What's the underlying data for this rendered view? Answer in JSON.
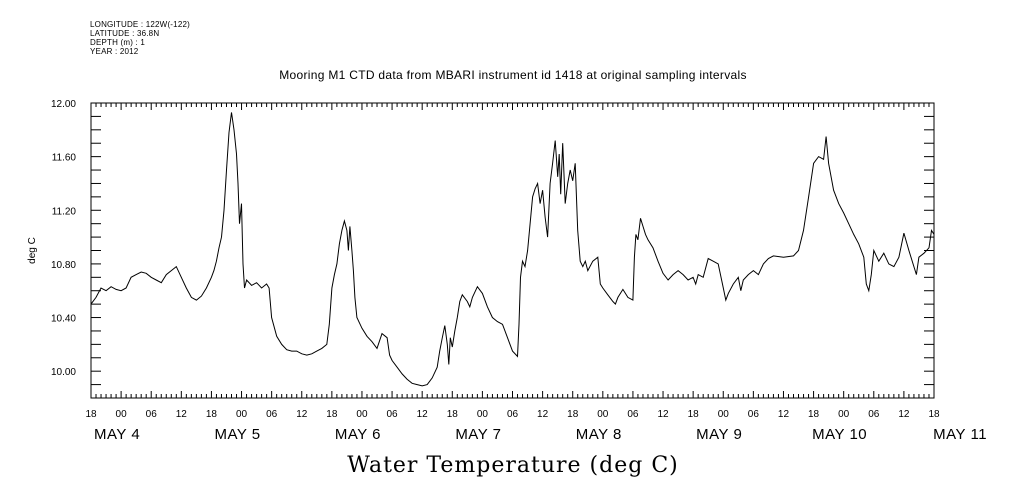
{
  "meta": {
    "longitude": "LONGITUDE : 122W(-122)",
    "latitude": "LATITUDE : 36.8N",
    "depth": "DEPTH (m) : 1",
    "year": "YEAR : 2012"
  },
  "chart_data": {
    "type": "line",
    "title": "Mooring M1 CTD data from MBARI instrument id 1418 at original sampling intervals",
    "footer_title": "Water Temperature (deg C)",
    "ylabel": "deg C",
    "xlabel": "",
    "ylim": [
      9.8,
      12.0
    ],
    "y_ticks": [
      "10.00",
      "10.40",
      "10.80",
      "11.20",
      "11.60",
      "12.00"
    ],
    "y_tick_values": [
      10.0,
      10.4,
      10.8,
      11.2,
      11.6,
      12.0
    ],
    "x_tick_labels": [
      "18",
      "00",
      "06",
      "12",
      "18",
      "00",
      "06",
      "12",
      "18",
      "00",
      "06",
      "12",
      "18",
      "00",
      "06",
      "12",
      "18",
      "00",
      "06",
      "12",
      "18",
      "00",
      "06",
      "12",
      "18",
      "00",
      "06",
      "12",
      "18"
    ],
    "x_tick_hours": [
      18,
      24,
      30,
      36,
      42,
      48,
      54,
      60,
      66,
      72,
      78,
      84,
      90,
      96,
      102,
      108,
      114,
      120,
      126,
      132,
      138,
      144,
      150,
      156,
      162,
      168,
      174,
      180,
      186
    ],
    "xlim_hours": [
      18,
      186
    ],
    "x_axis_note": "hours since 2012-05-04 00:00",
    "day_labels": [
      "MAY  4",
      "MAY  5",
      "MAY  6",
      "MAY  7",
      "MAY  8",
      "MAY  9",
      "MAY 10",
      "MAY 11"
    ],
    "day_label_hours": [
      24,
      48,
      72,
      96,
      120,
      144,
      168,
      192
    ],
    "grid": false,
    "series": [
      {
        "name": "Water Temperature",
        "points": [
          [
            18,
            10.5
          ],
          [
            19,
            10.55
          ],
          [
            20,
            10.62
          ],
          [
            21,
            10.6
          ],
          [
            22,
            10.63
          ],
          [
            23,
            10.61
          ],
          [
            24,
            10.6
          ],
          [
            25,
            10.62
          ],
          [
            26,
            10.7
          ],
          [
            27,
            10.72
          ],
          [
            28,
            10.74
          ],
          [
            29,
            10.73
          ],
          [
            30,
            10.7
          ],
          [
            31,
            10.68
          ],
          [
            32,
            10.66
          ],
          [
            33,
            10.72
          ],
          [
            34,
            10.75
          ],
          [
            35,
            10.78
          ],
          [
            36,
            10.7
          ],
          [
            37,
            10.62
          ],
          [
            38,
            10.55
          ],
          [
            39,
            10.53
          ],
          [
            40,
            10.56
          ],
          [
            41,
            10.62
          ],
          [
            42,
            10.7
          ],
          [
            42.5,
            10.75
          ],
          [
            43,
            10.82
          ],
          [
            43.5,
            10.92
          ],
          [
            44,
            11.0
          ],
          [
            44.5,
            11.2
          ],
          [
            45,
            11.5
          ],
          [
            45.5,
            11.78
          ],
          [
            46,
            11.93
          ],
          [
            46.5,
            11.8
          ],
          [
            47,
            11.62
          ],
          [
            47.3,
            11.4
          ],
          [
            47.6,
            11.1
          ],
          [
            48,
            11.25
          ],
          [
            48.3,
            10.8
          ],
          [
            48.6,
            10.62
          ],
          [
            49,
            10.68
          ],
          [
            50,
            10.64
          ],
          [
            51,
            10.66
          ],
          [
            52,
            10.62
          ],
          [
            53,
            10.65
          ],
          [
            53.5,
            10.62
          ],
          [
            54,
            10.4
          ],
          [
            55,
            10.26
          ],
          [
            56,
            10.2
          ],
          [
            57,
            10.16
          ],
          [
            58,
            10.15
          ],
          [
            59,
            10.15
          ],
          [
            60,
            10.13
          ],
          [
            61,
            10.12
          ],
          [
            62,
            10.13
          ],
          [
            63,
            10.15
          ],
          [
            64,
            10.17
          ],
          [
            65,
            10.2
          ],
          [
            65.5,
            10.35
          ],
          [
            66,
            10.62
          ],
          [
            66.5,
            10.72
          ],
          [
            67,
            10.8
          ],
          [
            67.5,
            10.95
          ],
          [
            68,
            11.05
          ],
          [
            68.5,
            11.12
          ],
          [
            69,
            11.05
          ],
          [
            69.3,
            10.9
          ],
          [
            69.6,
            11.08
          ],
          [
            70,
            10.9
          ],
          [
            70.3,
            10.75
          ],
          [
            70.6,
            10.55
          ],
          [
            71,
            10.4
          ],
          [
            72,
            10.32
          ],
          [
            73,
            10.26
          ],
          [
            74,
            10.22
          ],
          [
            75,
            10.17
          ],
          [
            76,
            10.28
          ],
          [
            77,
            10.25
          ],
          [
            77.5,
            10.12
          ],
          [
            78,
            10.08
          ],
          [
            79,
            10.03
          ],
          [
            80,
            9.98
          ],
          [
            81,
            9.94
          ],
          [
            82,
            9.91
          ],
          [
            83,
            9.9
          ],
          [
            84,
            9.89
          ],
          [
            85,
            9.9
          ],
          [
            86,
            9.95
          ],
          [
            87,
            10.03
          ],
          [
            87.5,
            10.15
          ],
          [
            88,
            10.25
          ],
          [
            88.5,
            10.34
          ],
          [
            89,
            10.2
          ],
          [
            89.3,
            10.05
          ],
          [
            89.6,
            10.25
          ],
          [
            90,
            10.18
          ],
          [
            90.5,
            10.3
          ],
          [
            91,
            10.4
          ],
          [
            91.5,
            10.52
          ],
          [
            92,
            10.57
          ],
          [
            93,
            10.52
          ],
          [
            93.5,
            10.48
          ],
          [
            94,
            10.55
          ],
          [
            95,
            10.63
          ],
          [
            96,
            10.58
          ],
          [
            97,
            10.48
          ],
          [
            98,
            10.4
          ],
          [
            99,
            10.37
          ],
          [
            100,
            10.35
          ],
          [
            101,
            10.25
          ],
          [
            102,
            10.15
          ],
          [
            103,
            10.11
          ],
          [
            103.3,
            10.35
          ],
          [
            103.6,
            10.7
          ],
          [
            104,
            10.82
          ],
          [
            104.5,
            10.78
          ],
          [
            105,
            10.9
          ],
          [
            105.5,
            11.1
          ],
          [
            106,
            11.3
          ],
          [
            106.5,
            11.36
          ],
          [
            107,
            11.4
          ],
          [
            107.5,
            11.25
          ],
          [
            108,
            11.35
          ],
          [
            108.5,
            11.15
          ],
          [
            109,
            11.0
          ],
          [
            109.5,
            11.4
          ],
          [
            110,
            11.55
          ],
          [
            110.5,
            11.72
          ],
          [
            111,
            11.45
          ],
          [
            111.3,
            11.62
          ],
          [
            111.6,
            11.32
          ],
          [
            112,
            11.7
          ],
          [
            112.5,
            11.25
          ],
          [
            113,
            11.4
          ],
          [
            113.5,
            11.5
          ],
          [
            114,
            11.42
          ],
          [
            114.5,
            11.55
          ],
          [
            115,
            11.05
          ],
          [
            115.5,
            10.82
          ],
          [
            116,
            10.78
          ],
          [
            116.5,
            10.82
          ],
          [
            117,
            10.75
          ],
          [
            118,
            10.82
          ],
          [
            119,
            10.85
          ],
          [
            119.5,
            10.65
          ],
          [
            120,
            10.62
          ],
          [
            121,
            10.57
          ],
          [
            122,
            10.52
          ],
          [
            122.5,
            10.5
          ],
          [
            123,
            10.55
          ],
          [
            124,
            10.61
          ],
          [
            124.5,
            10.58
          ],
          [
            125,
            10.55
          ],
          [
            126,
            10.53
          ],
          [
            126.3,
            10.85
          ],
          [
            126.6,
            11.02
          ],
          [
            127,
            10.98
          ],
          [
            127.5,
            11.14
          ],
          [
            128,
            11.08
          ],
          [
            128.5,
            11.02
          ],
          [
            129,
            10.98
          ],
          [
            130,
            10.92
          ],
          [
            131,
            10.82
          ],
          [
            132,
            10.73
          ],
          [
            133,
            10.68
          ],
          [
            134,
            10.72
          ],
          [
            135,
            10.75
          ],
          [
            136,
            10.72
          ],
          [
            137,
            10.68
          ],
          [
            138,
            10.7
          ],
          [
            138.5,
            10.65
          ],
          [
            139,
            10.72
          ],
          [
            140,
            10.7
          ],
          [
            141,
            10.84
          ],
          [
            142,
            10.82
          ],
          [
            143,
            10.8
          ],
          [
            144,
            10.62
          ],
          [
            144.5,
            10.53
          ],
          [
            145,
            10.58
          ],
          [
            146,
            10.65
          ],
          [
            147,
            10.7
          ],
          [
            147.5,
            10.6
          ],
          [
            148,
            10.68
          ],
          [
            149,
            10.72
          ],
          [
            150,
            10.75
          ],
          [
            151,
            10.72
          ],
          [
            152,
            10.8
          ],
          [
            153,
            10.84
          ],
          [
            154,
            10.86
          ],
          [
            156,
            10.85
          ],
          [
            158,
            10.86
          ],
          [
            159,
            10.9
          ],
          [
            160,
            11.05
          ],
          [
            161,
            11.3
          ],
          [
            162,
            11.55
          ],
          [
            163,
            11.6
          ],
          [
            164,
            11.58
          ],
          [
            164.5,
            11.75
          ],
          [
            165,
            11.55
          ],
          [
            166,
            11.35
          ],
          [
            167,
            11.25
          ],
          [
            168,
            11.18
          ],
          [
            169,
            11.1
          ],
          [
            170,
            11.02
          ],
          [
            171,
            10.95
          ],
          [
            172,
            10.85
          ],
          [
            172.5,
            10.65
          ],
          [
            173,
            10.6
          ],
          [
            173.5,
            10.72
          ],
          [
            174,
            10.9
          ],
          [
            175,
            10.82
          ],
          [
            176,
            10.88
          ],
          [
            177,
            10.8
          ],
          [
            178,
            10.78
          ],
          [
            179,
            10.85
          ],
          [
            180,
            11.03
          ],
          [
            181,
            10.9
          ],
          [
            182,
            10.78
          ],
          [
            182.5,
            10.72
          ],
          [
            183,
            10.85
          ],
          [
            184,
            10.88
          ],
          [
            185,
            10.92
          ],
          [
            185.5,
            11.05
          ],
          [
            186,
            11.02
          ]
        ]
      }
    ]
  }
}
